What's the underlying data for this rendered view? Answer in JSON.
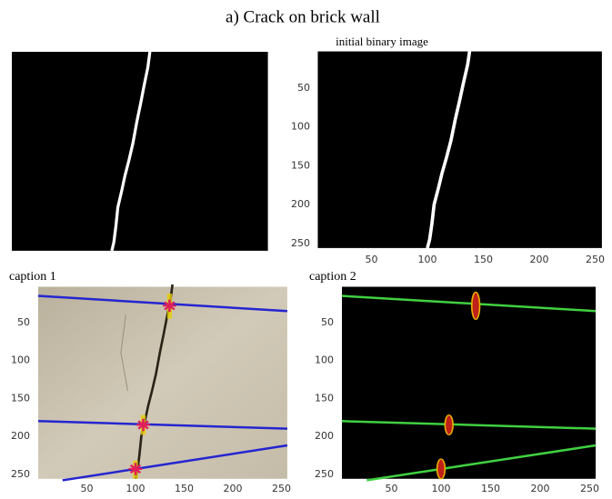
{
  "title": "a) Crack on brick wall",
  "panels": [
    {
      "title": "initial binary image",
      "yticks": [
        50,
        100,
        150,
        200,
        250
      ],
      "xticks": [
        50,
        100,
        150,
        200,
        250
      ]
    },
    {
      "title": "caption 1",
      "yticks": [
        50,
        100,
        150,
        200,
        250
      ],
      "xticks": [
        50,
        100,
        150,
        200,
        250
      ]
    },
    {
      "title": "caption 2",
      "yticks": [
        50,
        100,
        150,
        200,
        250
      ],
      "xticks": [
        50,
        100,
        150,
        200,
        250
      ]
    }
  ]
}
